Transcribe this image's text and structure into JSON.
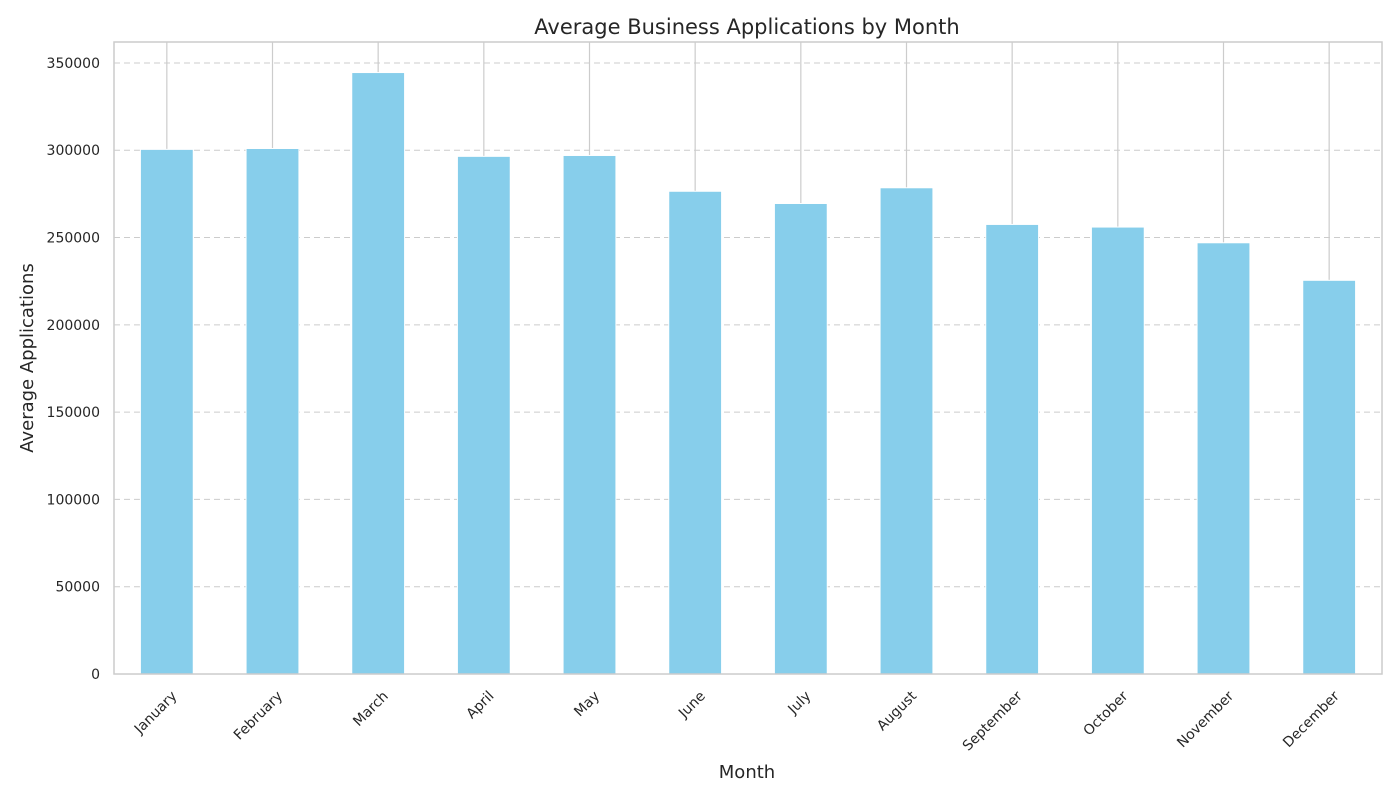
{
  "chart_data": {
    "type": "bar",
    "title": "Average Business Applications by Month",
    "xlabel": "Month",
    "ylabel": "Average Applications",
    "categories": [
      "January",
      "February",
      "March",
      "April",
      "May",
      "June",
      "July",
      "August",
      "September",
      "October",
      "November",
      "December"
    ],
    "values": [
      300500,
      301000,
      344500,
      296500,
      297000,
      276500,
      269500,
      278500,
      257500,
      256000,
      247000,
      225500
    ],
    "ylim": [
      0,
      362000
    ],
    "yticks": [
      0,
      50000,
      100000,
      150000,
      200000,
      250000,
      300000,
      350000
    ],
    "grid": {
      "vertical": "solid",
      "horizontal": "dashed"
    },
    "legend": "none",
    "colors": {
      "bar": "#87CEEB",
      "bar_edge": "#ffffff",
      "axes_edge": "#cccccc",
      "grid": "#cccccc",
      "text": "#262626"
    }
  }
}
